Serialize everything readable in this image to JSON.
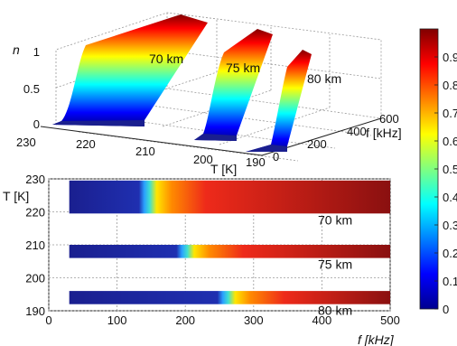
{
  "chart_data": [
    {
      "type": "surface3d",
      "zlabel": "n",
      "xlabel": "T [K]",
      "ylabel": "f [kHz]",
      "xticks": [
        "230",
        "220",
        "210",
        "200",
        "190"
      ],
      "yticks": [
        "0",
        "200",
        "400",
        "600"
      ],
      "zticks": [
        "0",
        "0.5",
        "1"
      ],
      "xlim": [
        190,
        230
      ],
      "ylim": [
        0,
        600
      ],
      "zlim": [
        0,
        1
      ],
      "surfaces": [
        {
          "label": "70 km",
          "T_range": [
            220,
            230
          ],
          "transition_f_kHz": 100
        },
        {
          "label": "75 km",
          "T_range": [
            205,
            210
          ],
          "transition_f_kHz": 150
        },
        {
          "label": "80 km",
          "T_range": [
            190,
            195
          ],
          "transition_f_kHz": 230
        }
      ]
    },
    {
      "type": "heatmap",
      "xlabel": "f [kHz]",
      "ylabel": "T [K]",
      "xticks": [
        "0",
        "100",
        "200",
        "300",
        "400",
        "500"
      ],
      "yticks": [
        "190",
        "200",
        "210",
        "220",
        "230"
      ],
      "xlim": [
        0,
        500
      ],
      "ylim": [
        190,
        230
      ],
      "bands": [
        {
          "label": "70 km",
          "T_range": [
            219.5,
            229.5
          ],
          "f_range": [
            30,
            500
          ],
          "transition_f_kHz": 140
        },
        {
          "label": "75 km",
          "T_range": [
            206,
            210
          ],
          "f_range": [
            30,
            500
          ],
          "transition_f_kHz": 195
        },
        {
          "label": "80 km",
          "T_range": [
            192,
            196
          ],
          "f_range": [
            30,
            500
          ],
          "transition_f_kHz": 255
        }
      ]
    }
  ],
  "colorbar": {
    "ticks": [
      "0",
      "0.1",
      "0.2",
      "0.3",
      "0.4",
      "0.5",
      "0.6",
      "0.7",
      "0.8",
      "0.9"
    ],
    "range": [
      0,
      1
    ]
  }
}
